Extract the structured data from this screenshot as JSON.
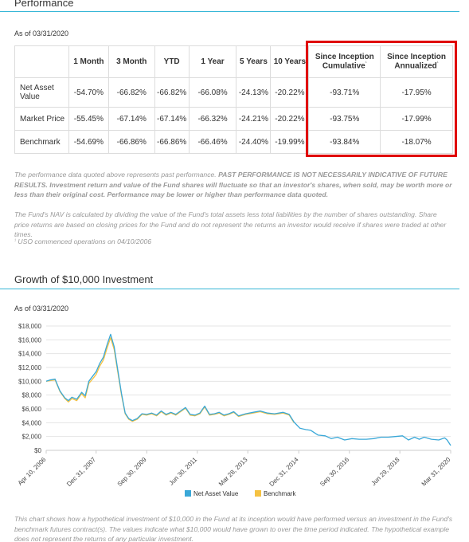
{
  "performance": {
    "title": "Performance",
    "as_of": "As of 03/31/2020",
    "headers": [
      "",
      "1 Month",
      "3 Month",
      "YTD",
      "1 Year",
      "5 Years",
      "10 Years"
    ],
    "since_cum_label": "Since Inception Cumulative",
    "since_ann_label": "Since Inception Annualized",
    "footnote_mark": "¹",
    "rows": [
      {
        "label": "Net Asset Value",
        "values": [
          "-54.70%",
          "-66.82%",
          "-66.82%",
          "-66.08%",
          "-24.13%",
          "-20.22%",
          "-93.71%",
          "-17.95%"
        ]
      },
      {
        "label": "Market Price",
        "values": [
          "-55.45%",
          "-67.14%",
          "-67.14%",
          "-66.32%",
          "-24.21%",
          "-20.22%",
          "-93.75%",
          "-17.99%"
        ]
      },
      {
        "label": "Benchmark",
        "values": [
          "-54.69%",
          "-66.86%",
          "-66.86%",
          "-66.46%",
          "-24.40%",
          "-19.99%",
          "-93.84%",
          "-18.07%"
        ]
      }
    ],
    "disclaimer_1_plain": "The performance data quoted above represents past performance. ",
    "disclaimer_1_bold": "PAST PERFORMANCE IS NOT NECESSARILY INDICATIVE OF FUTURE RESULTS. Investment return and value of the Fund shares will fluctuate so that an investor's shares, when sold, may be worth more or less than their original cost. Performance may be lower or higher than performance data quoted.",
    "disclaimer_2": "The Fund's NAV is calculated by dividing the value of the Fund's total assets less total liabilities by the number of shares outstanding. Share price returns are based on closing prices for the Fund and do not represent the returns an investor would receive if shares were traded at other times.",
    "footnote_text": "USO commenced operations on 04/10/2006"
  },
  "growth": {
    "title": "Growth of $10,000 Investment",
    "as_of": "As of 03/31/2020",
    "caption": "This chart shows how a hypothetical investment of $10,000 in the Fund at its inception would have performed versus an investment in the Fund's benchmark futures contract(s). The values indicate what $10,000 would have grown to over the time period indicated. The hypothetical example does not represent the returns of any particular investment."
  },
  "colors": {
    "nav_line": "#3aa8d8",
    "benchmark_line": "#f5c242",
    "rule": "#36b6d6",
    "highlight": "#e00000"
  },
  "chart_data": {
    "type": "line",
    "title": "",
    "xlabel": "",
    "ylabel": "",
    "ylim": [
      0,
      18000
    ],
    "y_ticks": [
      0,
      2000,
      4000,
      6000,
      8000,
      10000,
      12000,
      14000,
      16000,
      18000
    ],
    "y_tick_labels": [
      "$0",
      "$2,000",
      "$4,000",
      "$6,000",
      "$8,000",
      "$10,000",
      "$12,000",
      "$14,000",
      "$16,000",
      "$18,000"
    ],
    "x_range": [
      "2006-04-10",
      "2020-03-31"
    ],
    "x_ticks": [
      "2006-04-10",
      "2007-12-31",
      "2009-09-30",
      "2011-06-30",
      "2013-03-28",
      "2014-12-31",
      "2016-09-30",
      "2018-06-29",
      "2020-03-31"
    ],
    "x_tick_labels": [
      "Apr 10, 2006",
      "Dec 31, 2007",
      "Sep 30, 2009",
      "Jun 30, 2011",
      "Mar 28, 2013",
      "Dec 31, 2014",
      "Sep 30, 2016",
      "Jun 29, 2018",
      "Mar 31, 2020"
    ],
    "grid": true,
    "legend": "bottom-center",
    "series": [
      {
        "name": "Net Asset Value",
        "color": "#3aa8d8",
        "x": [
          "2006-04-10",
          "2006-06-01",
          "2006-08-01",
          "2006-10-01",
          "2006-12-01",
          "2007-01-15",
          "2007-03-01",
          "2007-05-01",
          "2007-07-01",
          "2007-08-15",
          "2007-10-01",
          "2007-11-15",
          "2008-01-01",
          "2008-02-15",
          "2008-04-01",
          "2008-05-15",
          "2008-07-01",
          "2008-08-15",
          "2008-10-01",
          "2008-11-15",
          "2009-01-01",
          "2009-02-15",
          "2009-04-01",
          "2009-06-01",
          "2009-08-01",
          "2009-10-01",
          "2009-12-01",
          "2010-02-01",
          "2010-04-01",
          "2010-06-01",
          "2010-08-01",
          "2010-10-01",
          "2010-12-01",
          "2011-02-01",
          "2011-04-01",
          "2011-06-01",
          "2011-08-01",
          "2011-10-01",
          "2011-12-01",
          "2012-02-01",
          "2012-04-01",
          "2012-06-01",
          "2012-08-01",
          "2012-10-01",
          "2012-12-01",
          "2013-03-01",
          "2013-06-01",
          "2013-09-01",
          "2013-12-01",
          "2014-03-01",
          "2014-06-15",
          "2014-09-01",
          "2014-11-01",
          "2015-01-15",
          "2015-04-01",
          "2015-06-01",
          "2015-09-01",
          "2015-12-01",
          "2016-02-15",
          "2016-05-01",
          "2016-08-01",
          "2016-11-01",
          "2017-02-01",
          "2017-05-01",
          "2017-08-01",
          "2017-11-01",
          "2018-02-01",
          "2018-05-01",
          "2018-08-01",
          "2018-10-15",
          "2018-12-31",
          "2019-03-01",
          "2019-05-01",
          "2019-08-01",
          "2019-11-01",
          "2020-01-15",
          "2020-02-15",
          "2020-03-31"
        ],
        "y": [
          10000,
          10200,
          10300,
          8600,
          7600,
          7200,
          7700,
          7400,
          8400,
          7900,
          10000,
          10700,
          11400,
          12600,
          13500,
          15200,
          16800,
          15000,
          11500,
          8200,
          5400,
          4600,
          4300,
          4600,
          5300,
          5200,
          5400,
          5100,
          5700,
          5200,
          5500,
          5200,
          5700,
          6200,
          5200,
          5100,
          5400,
          6400,
          5200,
          5300,
          5500,
          5100,
          5300,
          5600,
          5000,
          5300,
          5500,
          5700,
          5400,
          5300,
          5500,
          5200,
          4100,
          3200,
          3000,
          2900,
          2200,
          2100,
          1700,
          1900,
          1500,
          1700,
          1600,
          1600,
          1700,
          1900,
          1900,
          2000,
          2100,
          1500,
          1900,
          1600,
          1900,
          1600,
          1500,
          1800,
          1500,
          700
        ]
      },
      {
        "name": "Benchmark",
        "color": "#f5c242",
        "x": [
          "2006-04-10",
          "2006-06-01",
          "2006-08-01",
          "2006-10-01",
          "2006-12-01",
          "2007-01-15",
          "2007-03-01",
          "2007-05-01",
          "2007-07-01",
          "2007-08-15",
          "2007-10-01",
          "2007-11-15",
          "2008-01-01",
          "2008-02-15",
          "2008-04-01",
          "2008-05-15",
          "2008-07-01",
          "2008-08-15",
          "2008-10-01",
          "2008-11-15",
          "2009-01-01",
          "2009-02-15",
          "2009-04-01",
          "2009-06-01",
          "2009-08-01",
          "2009-10-01",
          "2009-12-01",
          "2010-02-01",
          "2010-04-01",
          "2010-06-01",
          "2010-08-01",
          "2010-10-01",
          "2010-12-01",
          "2011-02-01",
          "2011-04-01",
          "2011-06-01",
          "2011-08-01",
          "2011-10-01",
          "2011-12-01",
          "2012-02-01",
          "2012-04-01",
          "2012-06-01",
          "2012-08-01",
          "2012-10-01",
          "2012-12-01",
          "2013-03-01",
          "2013-06-01",
          "2013-09-01",
          "2013-12-01",
          "2014-03-01",
          "2014-06-15",
          "2014-09-01",
          "2014-11-01"
        ],
        "y": [
          10000,
          10100,
          10200,
          8500,
          7500,
          7000,
          7500,
          7200,
          8200,
          7600,
          9700,
          10300,
          11000,
          12200,
          13100,
          14700,
          16300,
          14600,
          11200,
          8000,
          5300,
          4500,
          4200,
          4500,
          5200,
          5100,
          5300,
          5000,
          5600,
          5100,
          5400,
          5100,
          5600,
          6100,
          5100,
          5000,
          5300,
          6300,
          5100,
          5200,
          5400,
          5000,
          5200,
          5500,
          4900,
          5200,
          5400,
          5600,
          5300,
          5200,
          5400,
          5100,
          4000
        ]
      }
    ]
  }
}
